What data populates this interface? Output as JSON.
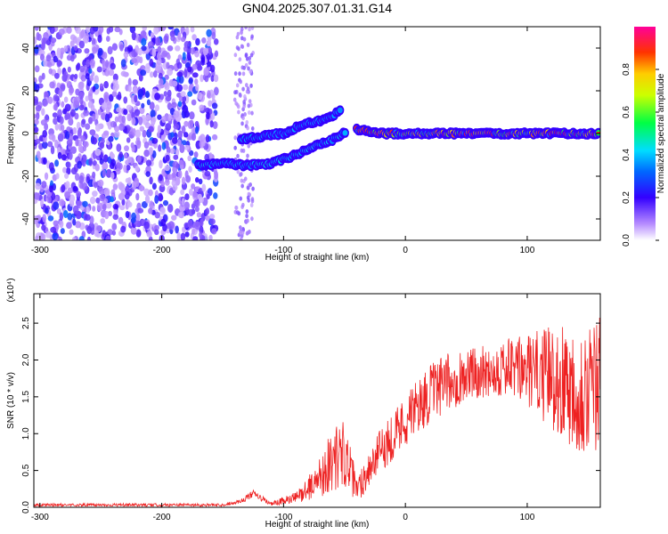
{
  "title": "GN04.2025.307.01.31.G14",
  "colors": {
    "snr_line": "#ee2222",
    "frame": "#000000"
  },
  "chart_data": [
    {
      "type": "heatmap",
      "name": "spectrogram",
      "xlabel": "Height of straight line (km)",
      "ylabel": "Frequency (Hz)",
      "xlim": [
        -305,
        160
      ],
      "ylim": [
        -50,
        50
      ],
      "xticks": [
        -300,
        -200,
        -100,
        0,
        100
      ],
      "xtick_labels": [
        "-300",
        "-200",
        "-100",
        "0",
        "100"
      ],
      "yticks": [
        -40,
        -20,
        0,
        20,
        40
      ],
      "ytick_labels": [
        "-40",
        "-20",
        "0",
        "20",
        "40"
      ],
      "colorbar": {
        "label": "Normalized spectral amplitude",
        "range": [
          0,
          1
        ],
        "ticks": [
          0.0,
          0.2,
          0.4,
          0.6,
          0.8
        ],
        "tick_labels": [
          "0.0",
          "0.2",
          "0.4",
          "0.6",
          "0.8"
        ]
      },
      "ridges": [
        {
          "name": "upper-branch",
          "points": [
            [
              -135,
              -3
            ],
            [
              -115,
              -1
            ],
            [
              -100,
              0
            ],
            [
              -85,
              4
            ],
            [
              -70,
              6
            ],
            [
              -60,
              8
            ],
            [
              -52,
              12
            ]
          ],
          "amplitude": 0.4
        },
        {
          "name": "lower-branch",
          "points": [
            [
              -170,
              -15
            ],
            [
              -150,
              -14
            ],
            [
              -130,
              -15
            ],
            [
              -110,
              -14
            ],
            [
              -90,
              -10
            ],
            [
              -75,
              -6
            ],
            [
              -60,
              -3
            ],
            [
              -48,
              1
            ]
          ],
          "amplitude": 0.45
        },
        {
          "name": "main-tone",
          "points": [
            [
              -40,
              2
            ],
            [
              -20,
              0
            ],
            [
              0,
              0
            ],
            [
              40,
              0
            ],
            [
              80,
              0
            ],
            [
              120,
              0
            ],
            [
              160,
              0
            ]
          ],
          "amplitude": 0.95
        }
      ]
    },
    {
      "type": "line",
      "name": "snr",
      "xlabel": "Height of straight line (km)",
      "ylabel": "SNR (10 * v/v)",
      "y_multiplier": "(x10⁴)",
      "xlim": [
        -305,
        160
      ],
      "ylim": [
        0,
        2.9
      ],
      "xticks": [
        -300,
        -200,
        -100,
        0,
        100
      ],
      "xtick_labels": [
        "-300",
        "-200",
        "-100",
        "0",
        "100"
      ],
      "yticks": [
        0.0,
        0.5,
        1.0,
        1.5,
        2.0,
        2.5
      ],
      "ytick_labels": [
        "0.0",
        "0.5",
        "1.0",
        "1.5",
        "2.0",
        "2.5"
      ],
      "envelope": {
        "x": [
          -305,
          -150,
          -135,
          -125,
          -110,
          -90,
          -75,
          -60,
          -50,
          -40,
          -30,
          -20,
          -10,
          0,
          20,
          40,
          60,
          80,
          100,
          120,
          140,
          160
        ],
        "y": [
          0.03,
          0.03,
          0.08,
          0.18,
          0.04,
          0.12,
          0.3,
          0.6,
          0.7,
          0.2,
          0.5,
          0.75,
          0.95,
          1.15,
          1.5,
          1.7,
          1.8,
          1.85,
          1.8,
          1.7,
          1.55,
          1.5
        ],
        "spread": [
          0.02,
          0.02,
          0.03,
          0.05,
          0.03,
          0.08,
          0.2,
          0.45,
          0.45,
          0.2,
          0.25,
          0.3,
          0.35,
          0.35,
          0.4,
          0.4,
          0.35,
          0.4,
          0.5,
          0.7,
          0.9,
          1.0
        ]
      }
    }
  ]
}
